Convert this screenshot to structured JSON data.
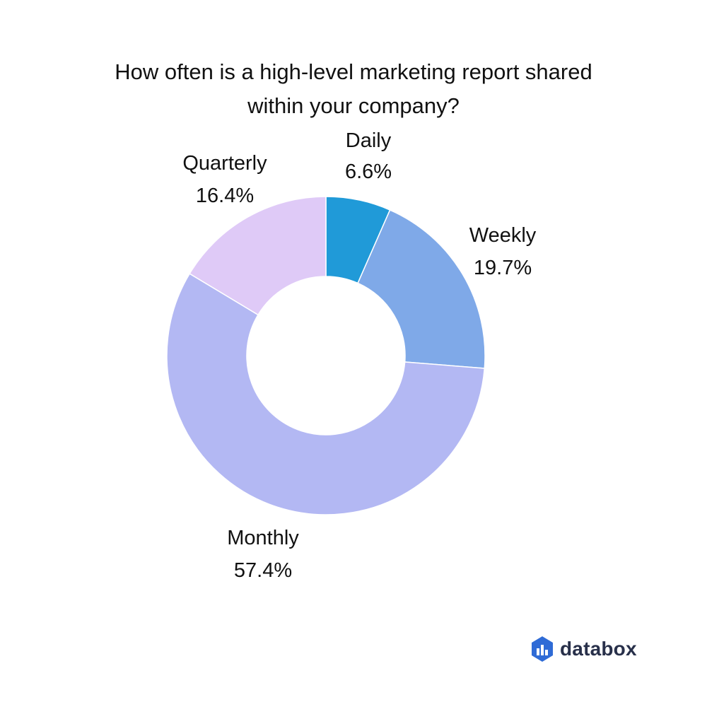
{
  "page": {
    "title_lines": [
      "How often is a high-level marketing report shared",
      "within your company?"
    ],
    "brand": "databox"
  },
  "icons": {
    "brand_logo": "databox-hexagon-bars-icon"
  },
  "colors": {
    "text": "#111111",
    "brand_text": "#28304a",
    "brand_logo": "#2f6bd6"
  },
  "chart_data": {
    "type": "pie",
    "subtype": "donut",
    "title": "How often is a high-level marketing report shared within your company?",
    "unit": "%",
    "start_angle_degrees": 0,
    "direction": "clockwise",
    "slices": [
      {
        "label": "Daily",
        "value": 6.6,
        "display": "6.6%",
        "color": "#209ad8"
      },
      {
        "label": "Weekly",
        "value": 19.7,
        "display": "19.7%",
        "color": "#7fa9e8"
      },
      {
        "label": "Monthly",
        "value": 57.4,
        "display": "57.4%",
        "color": "#b3b8f3"
      },
      {
        "label": "Quarterly",
        "value": 16.4,
        "display": "16.4%",
        "color": "#dfcaf7"
      }
    ],
    "legend": "none"
  }
}
